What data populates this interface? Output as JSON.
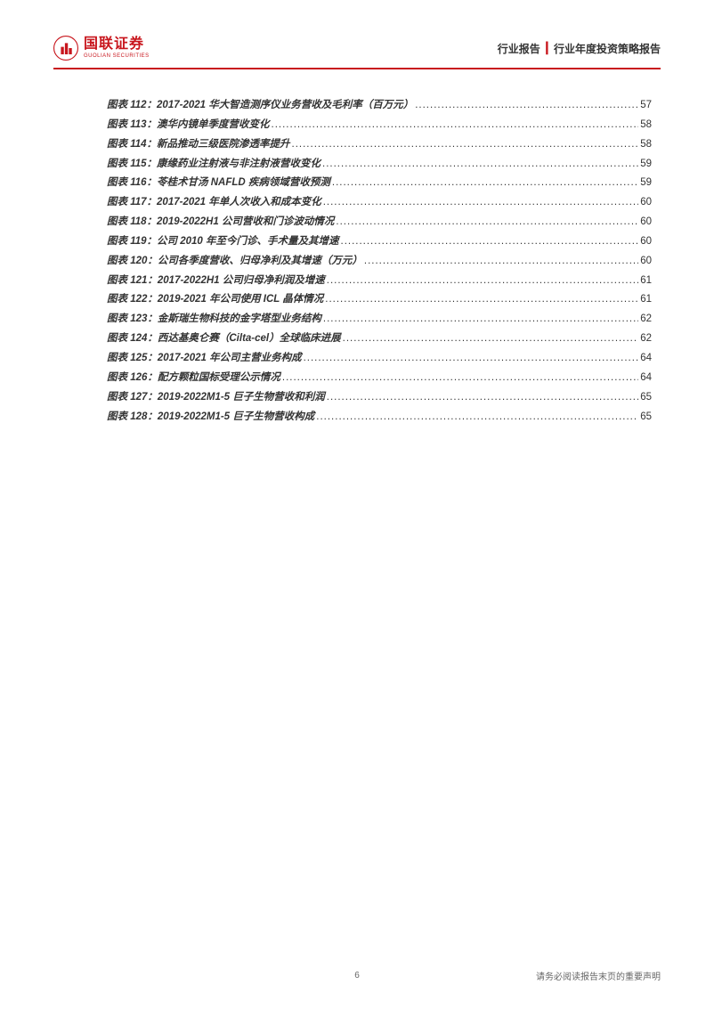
{
  "header": {
    "logo_cn": "国联证券",
    "logo_en": "GUOLIAN SECURITIES",
    "report_type_left": "行业报告",
    "report_type_right": "行业年度投资策略报告"
  },
  "toc": {
    "entries": [
      {
        "num": "112",
        "title": "2017-2021 华大智造测序仪业务营收及毛利率（百万元）",
        "page": "57"
      },
      {
        "num": "113",
        "title": "澳华内镜单季度营收变化",
        "page": "58"
      },
      {
        "num": "114",
        "title": "新品推动三级医院渗透率提升",
        "page": "58"
      },
      {
        "num": "115",
        "title": "康缘药业注射液与非注射液营收变化",
        "page": "59"
      },
      {
        "num": "116",
        "title": "苓桂术甘汤 NAFLD 疾病领域营收预测",
        "page": "59"
      },
      {
        "num": "117",
        "title": "2017-2021 年单人次收入和成本变化",
        "page": "60"
      },
      {
        "num": "118",
        "title": "2019-2022H1 公司营收和门诊波动情况",
        "page": "60"
      },
      {
        "num": "119",
        "title": "公司 2010 年至今门诊、手术量及其增速",
        "page": "60"
      },
      {
        "num": "120",
        "title": "公司各季度营收、归母净利及其增速（万元）",
        "page": "60"
      },
      {
        "num": "121",
        "title": "2017-2022H1 公司归母净利润及增速",
        "page": "61"
      },
      {
        "num": "122",
        "title": "2019-2021 年公司使用 ICL 晶体情况",
        "page": "61"
      },
      {
        "num": "123",
        "title": "金斯瑞生物科技的金字塔型业务结构",
        "page": "62"
      },
      {
        "num": "124",
        "title": "西达基奥仑赛（Cilta-cel）全球临床进展",
        "page": "62"
      },
      {
        "num": "125",
        "title": "2017-2021 年公司主营业务构成",
        "page": "64"
      },
      {
        "num": "126",
        "title": "配方颗粒国标受理公示情况",
        "page": "64"
      },
      {
        "num": "127",
        "title": "2019-2022M1-5 巨子生物营收和利润",
        "page": "65"
      },
      {
        "num": "128",
        "title": "2019-2022M1-5 巨子生物营收构成",
        "page": "65"
      }
    ],
    "label_prefix": "图表 ",
    "label_suffix": "："
  },
  "footer": {
    "page_number": "6",
    "disclaimer": "请务必阅读报告末页的重要声明"
  },
  "colors": {
    "brand_red": "#c8161d",
    "text_dark": "#333333",
    "text_gray": "#666666"
  }
}
